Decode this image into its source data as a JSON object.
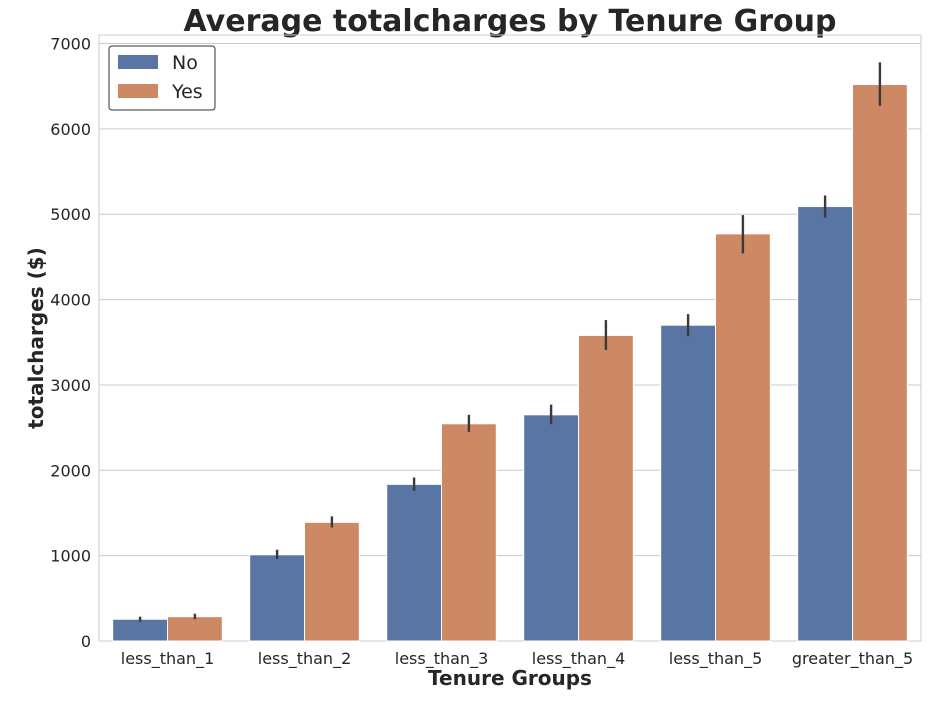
{
  "chart_data": {
    "type": "bar",
    "title": "Average totalcharges by Tenure Group",
    "xlabel": "Tenure Groups",
    "ylabel": "totalcharges ($)",
    "categories": [
      "less_than_1",
      "less_than_2",
      "less_than_3",
      "less_than_4",
      "less_than_5",
      "greater_than_5"
    ],
    "series": [
      {
        "name": "No",
        "color": "#5975a4",
        "values": [
          255,
          1010,
          1835,
          2650,
          3700,
          5090
        ],
        "error_low": [
          225,
          960,
          1760,
          2540,
          3570,
          4960
        ],
        "error_high": [
          285,
          1070,
          1915,
          2770,
          3830,
          5220
        ]
      },
      {
        "name": "Yes",
        "color": "#cc8963",
        "values": [
          285,
          1390,
          2545,
          3580,
          4770,
          6520
        ],
        "error_low": [
          255,
          1330,
          2450,
          3410,
          4540,
          6270
        ],
        "error_high": [
          320,
          1460,
          2650,
          3760,
          4990,
          6780
        ]
      }
    ],
    "ylim": [
      0,
      7100
    ],
    "yticks": [
      0,
      1000,
      2000,
      3000,
      4000,
      5000,
      6000,
      7000
    ],
    "grid": "y",
    "legend": "top-left"
  }
}
